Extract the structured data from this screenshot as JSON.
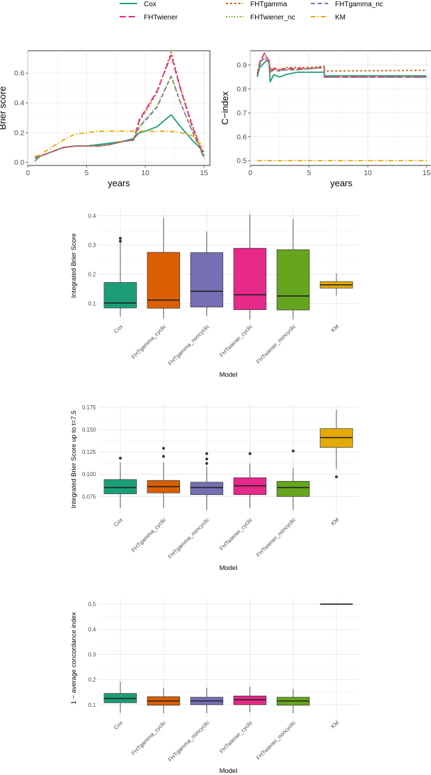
{
  "legend": {
    "entries": [
      {
        "name": "Cox",
        "color": "#1b9e77",
        "dash": "solid"
      },
      {
        "name": "FHTgamma",
        "color": "#d95f02",
        "dash": "dot"
      },
      {
        "name": "FHTgamma_nc",
        "color": "#7570b3",
        "dash": "dash"
      },
      {
        "name": "FHTwiener",
        "color": "#e7298a",
        "dash": "longdash"
      },
      {
        "name": "FHTwiener_nc",
        "color": "#66a61e",
        "dash": "dotted"
      },
      {
        "name": "KM",
        "color": "#e6ab02",
        "dash": "dotdash"
      }
    ]
  },
  "chart_data": [
    {
      "type": "line",
      "title": "",
      "xlabel": "years",
      "ylabel": "Brier score",
      "xlim": [
        0,
        15.5
      ],
      "ylim": [
        -0.02,
        0.75
      ],
      "xticks": [
        0,
        5,
        10,
        15
      ],
      "yticks": [
        0.0,
        0.2,
        0.4,
        0.6
      ],
      "ytick_labels": [
        "0.0",
        "0.2",
        "0.4",
        "0.6"
      ],
      "series": [
        {
          "name": "Cox",
          "x": [
            0.6,
            1,
            2,
            3,
            4,
            5,
            6,
            7,
            8,
            9,
            9.5,
            10,
            11,
            12.2,
            13,
            14,
            15
          ],
          "y": [
            0.01,
            0.04,
            0.07,
            0.1,
            0.11,
            0.11,
            0.12,
            0.13,
            0.14,
            0.16,
            0.2,
            0.21,
            0.24,
            0.32,
            0.24,
            0.15,
            0.07
          ]
        },
        {
          "name": "FHTgamma",
          "x": [
            0.6,
            1,
            2,
            3,
            4,
            5,
            6,
            7,
            8,
            9,
            9.5,
            10,
            11,
            12.2,
            13,
            14,
            15
          ],
          "y": [
            0.03,
            0.04,
            0.07,
            0.1,
            0.11,
            0.11,
            0.11,
            0.12,
            0.14,
            0.15,
            0.28,
            0.34,
            0.47,
            0.74,
            0.5,
            0.25,
            0.04
          ]
        },
        {
          "name": "FHTgamma_nc",
          "x": [
            0.6,
            1,
            2,
            3,
            4,
            5,
            6,
            7,
            8,
            9,
            9.5,
            10,
            11,
            12.2,
            13,
            14,
            15
          ],
          "y": [
            0.03,
            0.04,
            0.07,
            0.1,
            0.11,
            0.11,
            0.11,
            0.12,
            0.14,
            0.15,
            0.24,
            0.28,
            0.37,
            0.58,
            0.4,
            0.21,
            0.03
          ]
        },
        {
          "name": "FHTwiener",
          "x": [
            0.6,
            1,
            2,
            3,
            4,
            5,
            6,
            7,
            8,
            9,
            9.5,
            10,
            11,
            12.2,
            13,
            14,
            15
          ],
          "y": [
            0.03,
            0.04,
            0.07,
            0.1,
            0.11,
            0.11,
            0.11,
            0.12,
            0.14,
            0.15,
            0.29,
            0.35,
            0.48,
            0.72,
            0.49,
            0.24,
            0.04
          ]
        },
        {
          "name": "FHTwiener_nc",
          "x": [
            0.6,
            1,
            2,
            3,
            4,
            5,
            6,
            7,
            8,
            9,
            9.5,
            10,
            11,
            12.2,
            13,
            14,
            15
          ],
          "y": [
            0.03,
            0.04,
            0.07,
            0.1,
            0.11,
            0.11,
            0.11,
            0.12,
            0.14,
            0.15,
            0.24,
            0.29,
            0.38,
            0.58,
            0.4,
            0.21,
            0.03
          ]
        },
        {
          "name": "KM",
          "x": [
            0.6,
            1,
            2,
            3,
            4,
            5,
            6,
            7,
            8,
            9,
            10,
            11,
            12,
            13,
            14,
            15
          ],
          "y": [
            0.04,
            0.05,
            0.1,
            0.15,
            0.19,
            0.2,
            0.21,
            0.21,
            0.21,
            0.21,
            0.21,
            0.21,
            0.21,
            0.2,
            0.18,
            0.1
          ]
        }
      ]
    },
    {
      "type": "line",
      "title": "",
      "xlabel": "years",
      "ylabel": "C−index",
      "xlim": [
        0,
        15.5
      ],
      "ylim": [
        0.48,
        0.96
      ],
      "xticks": [
        0,
        5,
        10,
        15
      ],
      "yticks": [
        0.5,
        0.6,
        0.7,
        0.8,
        0.9
      ],
      "ytick_labels": [
        "0.5",
        "0.6",
        "0.7",
        "0.8",
        "0.9"
      ],
      "series": [
        {
          "name": "Cox",
          "x": [
            0.6,
            0.8,
            1.0,
            1.2,
            1.4,
            1.6,
            1.7,
            2.0,
            2.5,
            3,
            4,
            5,
            6.3,
            6.3,
            15
          ],
          "y": [
            0.85,
            0.89,
            0.9,
            0.91,
            0.92,
            0.91,
            0.83,
            0.86,
            0.85,
            0.86,
            0.87,
            0.87,
            0.87,
            0.855,
            0.855
          ]
        },
        {
          "name": "FHTgamma",
          "x": [
            0.6,
            0.8,
            1.0,
            1.2,
            1.4,
            1.6,
            1.7,
            2.0,
            2.5,
            3,
            4,
            5,
            6.3,
            6.3,
            15
          ],
          "y": [
            0.86,
            0.91,
            0.93,
            0.95,
            0.93,
            0.92,
            0.88,
            0.89,
            0.88,
            0.89,
            0.89,
            0.89,
            0.895,
            0.875,
            0.878
          ]
        },
        {
          "name": "FHTgamma_nc",
          "x": [
            0.6,
            0.8,
            1.0,
            1.2,
            1.4,
            1.6,
            1.7,
            2.0,
            2.5,
            3,
            4,
            5,
            6.3,
            6.3,
            15
          ],
          "y": [
            0.86,
            0.9,
            0.92,
            0.93,
            0.92,
            0.91,
            0.87,
            0.88,
            0.875,
            0.88,
            0.88,
            0.885,
            0.89,
            0.85,
            0.85
          ]
        },
        {
          "name": "FHTwiener",
          "x": [
            0.6,
            0.8,
            1.0,
            1.2,
            1.4,
            1.6,
            1.7,
            2.0,
            2.5,
            3,
            4,
            5,
            6.3,
            6.3,
            15
          ],
          "y": [
            0.86,
            0.91,
            0.93,
            0.95,
            0.93,
            0.92,
            0.87,
            0.885,
            0.88,
            0.885,
            0.885,
            0.885,
            0.89,
            0.85,
            0.85
          ]
        },
        {
          "name": "FHTwiener_nc",
          "x": [
            0.6,
            0.8,
            1.0,
            1.2,
            1.4,
            1.6,
            1.7,
            2.0,
            2.5,
            3,
            4,
            5,
            6.3,
            6.3,
            15
          ],
          "y": [
            0.86,
            0.9,
            0.92,
            0.93,
            0.92,
            0.91,
            0.87,
            0.88,
            0.875,
            0.88,
            0.88,
            0.885,
            0.89,
            0.852,
            0.852
          ]
        },
        {
          "name": "KM",
          "x": [
            0.6,
            15
          ],
          "y": [
            0.5,
            0.5
          ]
        }
      ]
    },
    {
      "type": "box",
      "title": "",
      "xlabel": "Model",
      "ylabel": "Integrated Brier Score",
      "ylim": [
        0.04,
        0.42
      ],
      "yticks": [
        0.1,
        0.2,
        0.3,
        0.4
      ],
      "ytick_labels": [
        "0.1",
        "0.2",
        "0.3",
        "0.4"
      ],
      "categories": [
        "Cox",
        "FHTgamma_cyclic",
        "FHTgamma_noncyclic",
        "FHTwiener_cyclic",
        "FHTwiener_noncyclic",
        "KM"
      ],
      "colors": [
        "#1b9e77",
        "#d95f02",
        "#7570b3",
        "#e7298a",
        "#66a61e",
        "#e6ab02"
      ],
      "boxes": [
        {
          "min": 0.055,
          "q1": 0.085,
          "median": 0.102,
          "q3": 0.172,
          "max": 0.308,
          "outliers": [
            0.313,
            0.323
          ]
        },
        {
          "min": 0.048,
          "q1": 0.084,
          "median": 0.112,
          "q3": 0.275,
          "max": 0.393,
          "outliers": []
        },
        {
          "min": 0.058,
          "q1": 0.088,
          "median": 0.142,
          "q3": 0.274,
          "max": 0.346,
          "outliers": []
        },
        {
          "min": 0.046,
          "q1": 0.079,
          "median": 0.13,
          "q3": 0.289,
          "max": 0.405,
          "outliers": []
        },
        {
          "min": 0.046,
          "q1": 0.078,
          "median": 0.126,
          "q3": 0.284,
          "max": 0.388,
          "outliers": []
        },
        {
          "min": 0.127,
          "q1": 0.153,
          "median": 0.164,
          "q3": 0.175,
          "max": 0.203,
          "outliers": []
        }
      ]
    },
    {
      "type": "box",
      "title": "",
      "xlabel": "Model",
      "ylabel": "Integrated Brier Score up to t=7.5",
      "ylim": [
        0.055,
        0.178
      ],
      "yticks": [
        0.075,
        0.1,
        0.125,
        0.15,
        0.175
      ],
      "ytick_labels": [
        "0.075",
        "0.100",
        "0.125",
        "0.150",
        "0.175"
      ],
      "categories": [
        "Cox",
        "FHTgamma_cyclic",
        "FHTgamma_noncyclic",
        "FHTwiener_cyclic",
        "FHTwiener_noncyclic",
        "KM"
      ],
      "colors": [
        "#1b9e77",
        "#d95f02",
        "#7570b3",
        "#e7298a",
        "#66a61e",
        "#e6ab02"
      ],
      "boxes": [
        {
          "min": 0.062,
          "q1": 0.078,
          "median": 0.085,
          "q3": 0.094,
          "max": 0.113,
          "outliers": [
            0.118
          ]
        },
        {
          "min": 0.062,
          "q1": 0.079,
          "median": 0.086,
          "q3": 0.093,
          "max": 0.113,
          "outliers": [
            0.12,
            0.129
          ]
        },
        {
          "min": 0.06,
          "q1": 0.077,
          "median": 0.085,
          "q3": 0.091,
          "max": 0.108,
          "outliers": [
            0.112,
            0.117,
            0.123
          ]
        },
        {
          "min": 0.062,
          "q1": 0.077,
          "median": 0.087,
          "q3": 0.096,
          "max": 0.112,
          "outliers": [
            0.123
          ]
        },
        {
          "min": 0.06,
          "q1": 0.075,
          "median": 0.085,
          "q3": 0.092,
          "max": 0.107,
          "outliers": [
            0.126
          ]
        },
        {
          "min": 0.106,
          "q1": 0.13,
          "median": 0.141,
          "q3": 0.151,
          "max": 0.172,
          "outliers": [
            0.097
          ]
        }
      ]
    },
    {
      "type": "box",
      "title": "",
      "xlabel": "Model",
      "ylabel": "1 − average concordance index",
      "ylim": [
        0.05,
        0.52
      ],
      "yticks": [
        0.1,
        0.2,
        0.3,
        0.4,
        0.5
      ],
      "ytick_labels": [
        "0.1",
        "0.2",
        "0.3",
        "0.4",
        "0.5"
      ],
      "categories": [
        "Cox",
        "FHTgamma_cyclic",
        "FHTgamma_noncyclic",
        "FHTwiener_cyclic",
        "FHTwiener_noncyclic",
        "KM"
      ],
      "colors": [
        "#1b9e77",
        "#d95f02",
        "#7570b3",
        "#e7298a",
        "#66a61e",
        "#e6ab02"
      ],
      "boxes": [
        {
          "min": 0.068,
          "q1": 0.108,
          "median": 0.125,
          "q3": 0.145,
          "max": 0.192,
          "outliers": []
        },
        {
          "min": 0.066,
          "q1": 0.098,
          "median": 0.115,
          "q3": 0.132,
          "max": 0.168,
          "outliers": []
        },
        {
          "min": 0.066,
          "q1": 0.1,
          "median": 0.115,
          "q3": 0.13,
          "max": 0.168,
          "outliers": []
        },
        {
          "min": 0.07,
          "q1": 0.1,
          "median": 0.12,
          "q3": 0.135,
          "max": 0.172,
          "outliers": []
        },
        {
          "min": 0.066,
          "q1": 0.098,
          "median": 0.115,
          "q3": 0.13,
          "max": 0.162,
          "outliers": []
        },
        {
          "min": 0.5,
          "q1": 0.5,
          "median": 0.5,
          "q3": 0.5,
          "max": 0.5,
          "outliers": []
        }
      ]
    }
  ]
}
